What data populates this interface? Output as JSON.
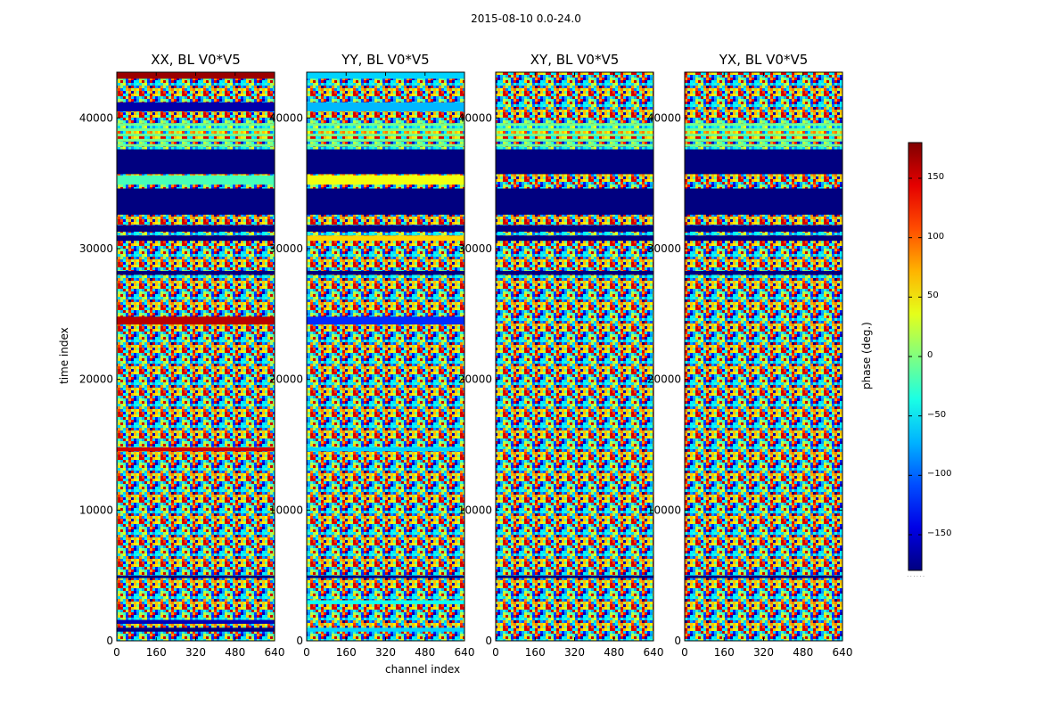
{
  "chart_data": {
    "type": "heatmap",
    "suptitle": "2015-08-10 0.0-24.0",
    "xlabel": "channel index",
    "ylabel": "time index",
    "colorbar": {
      "label": "phase (deg.)",
      "range": [
        -180,
        180
      ],
      "ticks": [
        -150,
        -100,
        -50,
        0,
        50,
        100,
        150
      ],
      "tick_labels": [
        "−150",
        "−100",
        "−50",
        "0",
        "50",
        "100",
        "150"
      ],
      "overflow_label": "......",
      "colormap": "jet"
    },
    "xlim": [
      0,
      640
    ],
    "ylim": [
      0,
      43500
    ],
    "xticks": [
      0,
      160,
      320,
      480,
      640
    ],
    "xtick_labels": [
      "0",
      "160",
      "320",
      "480",
      "640"
    ],
    "yticks": [
      0,
      10000,
      20000,
      30000,
      40000
    ],
    "ytick_labels": [
      "0",
      "10000",
      "20000",
      "30000",
      "40000"
    ],
    "panels": [
      {
        "title": "XX, BL V0*V5",
        "bands": [
          {
            "y0": 700,
            "y1": 1000,
            "phase": -180
          },
          {
            "y0": 1300,
            "y1": 1600,
            "phase": -160
          },
          {
            "y0": 4800,
            "y1": 5000,
            "phase": -180
          },
          {
            "y0": 14500,
            "y1": 14800,
            "phase": 150
          },
          {
            "y0": 24200,
            "y1": 24800,
            "phase": 160
          },
          {
            "y0": 28000,
            "y1": 28300,
            "phase": -180
          },
          {
            "y0": 30600,
            "y1": 31000,
            "phase": -180
          },
          {
            "y0": 31300,
            "y1": 31800,
            "phase": -180
          },
          {
            "y0": 32600,
            "y1": 34600,
            "phase": -180
          },
          {
            "y0": 34900,
            "y1": 35600,
            "phase": -20
          },
          {
            "y0": 35700,
            "y1": 37600,
            "phase": -180
          },
          {
            "y0": 37800,
            "y1": 38000,
            "phase": -5
          },
          {
            "y0": 38200,
            "y1": 38400,
            "phase": -5
          },
          {
            "y0": 38600,
            "y1": 38800,
            "phase": -5
          },
          {
            "y0": 39000,
            "y1": 39200,
            "phase": -5
          },
          {
            "y0": 39400,
            "y1": 39600,
            "phase": -5
          },
          {
            "y0": 40500,
            "y1": 41200,
            "phase": -165
          },
          {
            "y0": 43000,
            "y1": 43500,
            "phase": 170
          }
        ]
      },
      {
        "title": "YY, BL V0*V5",
        "bands": [
          {
            "y0": 700,
            "y1": 1000,
            "phase": -60
          },
          {
            "y0": 2800,
            "y1": 3100,
            "phase": -40
          },
          {
            "y0": 4800,
            "y1": 5000,
            "phase": -180
          },
          {
            "y0": 14500,
            "y1": 14800,
            "phase": -60
          },
          {
            "y0": 24200,
            "y1": 24800,
            "phase": -120
          },
          {
            "y0": 28000,
            "y1": 28300,
            "phase": -180
          },
          {
            "y0": 30600,
            "y1": 31000,
            "phase": 60
          },
          {
            "y0": 31300,
            "y1": 31800,
            "phase": -180
          },
          {
            "y0": 32600,
            "y1": 34600,
            "phase": -180
          },
          {
            "y0": 34900,
            "y1": 35600,
            "phase": 40
          },
          {
            "y0": 35700,
            "y1": 37600,
            "phase": -180
          },
          {
            "y0": 37800,
            "y1": 38000,
            "phase": -5
          },
          {
            "y0": 38200,
            "y1": 38400,
            "phase": -5
          },
          {
            "y0": 38600,
            "y1": 38800,
            "phase": -5
          },
          {
            "y0": 39000,
            "y1": 39200,
            "phase": -5
          },
          {
            "y0": 39400,
            "y1": 39600,
            "phase": -5
          },
          {
            "y0": 40500,
            "y1": 41200,
            "phase": -70
          },
          {
            "y0": 43000,
            "y1": 43500,
            "phase": -60
          }
        ]
      },
      {
        "title": "XY, BL V0*V5",
        "bands": [
          {
            "y0": 4800,
            "y1": 5000,
            "phase": -180
          },
          {
            "y0": 28000,
            "y1": 28300,
            "phase": -180
          },
          {
            "y0": 30600,
            "y1": 31000,
            "phase": -180
          },
          {
            "y0": 31300,
            "y1": 31800,
            "phase": -180
          },
          {
            "y0": 32600,
            "y1": 34600,
            "phase": -180
          },
          {
            "y0": 35700,
            "y1": 37600,
            "phase": -180
          },
          {
            "y0": 37800,
            "y1": 38000,
            "phase": -5
          },
          {
            "y0": 38200,
            "y1": 38400,
            "phase": -5
          },
          {
            "y0": 38600,
            "y1": 38800,
            "phase": -5
          },
          {
            "y0": 39000,
            "y1": 39200,
            "phase": -5
          },
          {
            "y0": 39400,
            "y1": 39600,
            "phase": -5
          }
        ]
      },
      {
        "title": "YX, BL V0*V5",
        "bands": [
          {
            "y0": 4800,
            "y1": 5000,
            "phase": -180
          },
          {
            "y0": 28000,
            "y1": 28300,
            "phase": -180
          },
          {
            "y0": 30600,
            "y1": 31000,
            "phase": -180
          },
          {
            "y0": 31300,
            "y1": 31800,
            "phase": -180
          },
          {
            "y0": 32600,
            "y1": 34600,
            "phase": -180
          },
          {
            "y0": 35700,
            "y1": 37600,
            "phase": -180
          },
          {
            "y0": 37800,
            "y1": 38000,
            "phase": -5
          },
          {
            "y0": 38200,
            "y1": 38400,
            "phase": -5
          },
          {
            "y0": 38600,
            "y1": 38800,
            "phase": -5
          },
          {
            "y0": 39000,
            "y1": 39200,
            "phase": -5
          },
          {
            "y0": 39400,
            "y1": 39600,
            "phase": -5
          }
        ]
      }
    ]
  }
}
